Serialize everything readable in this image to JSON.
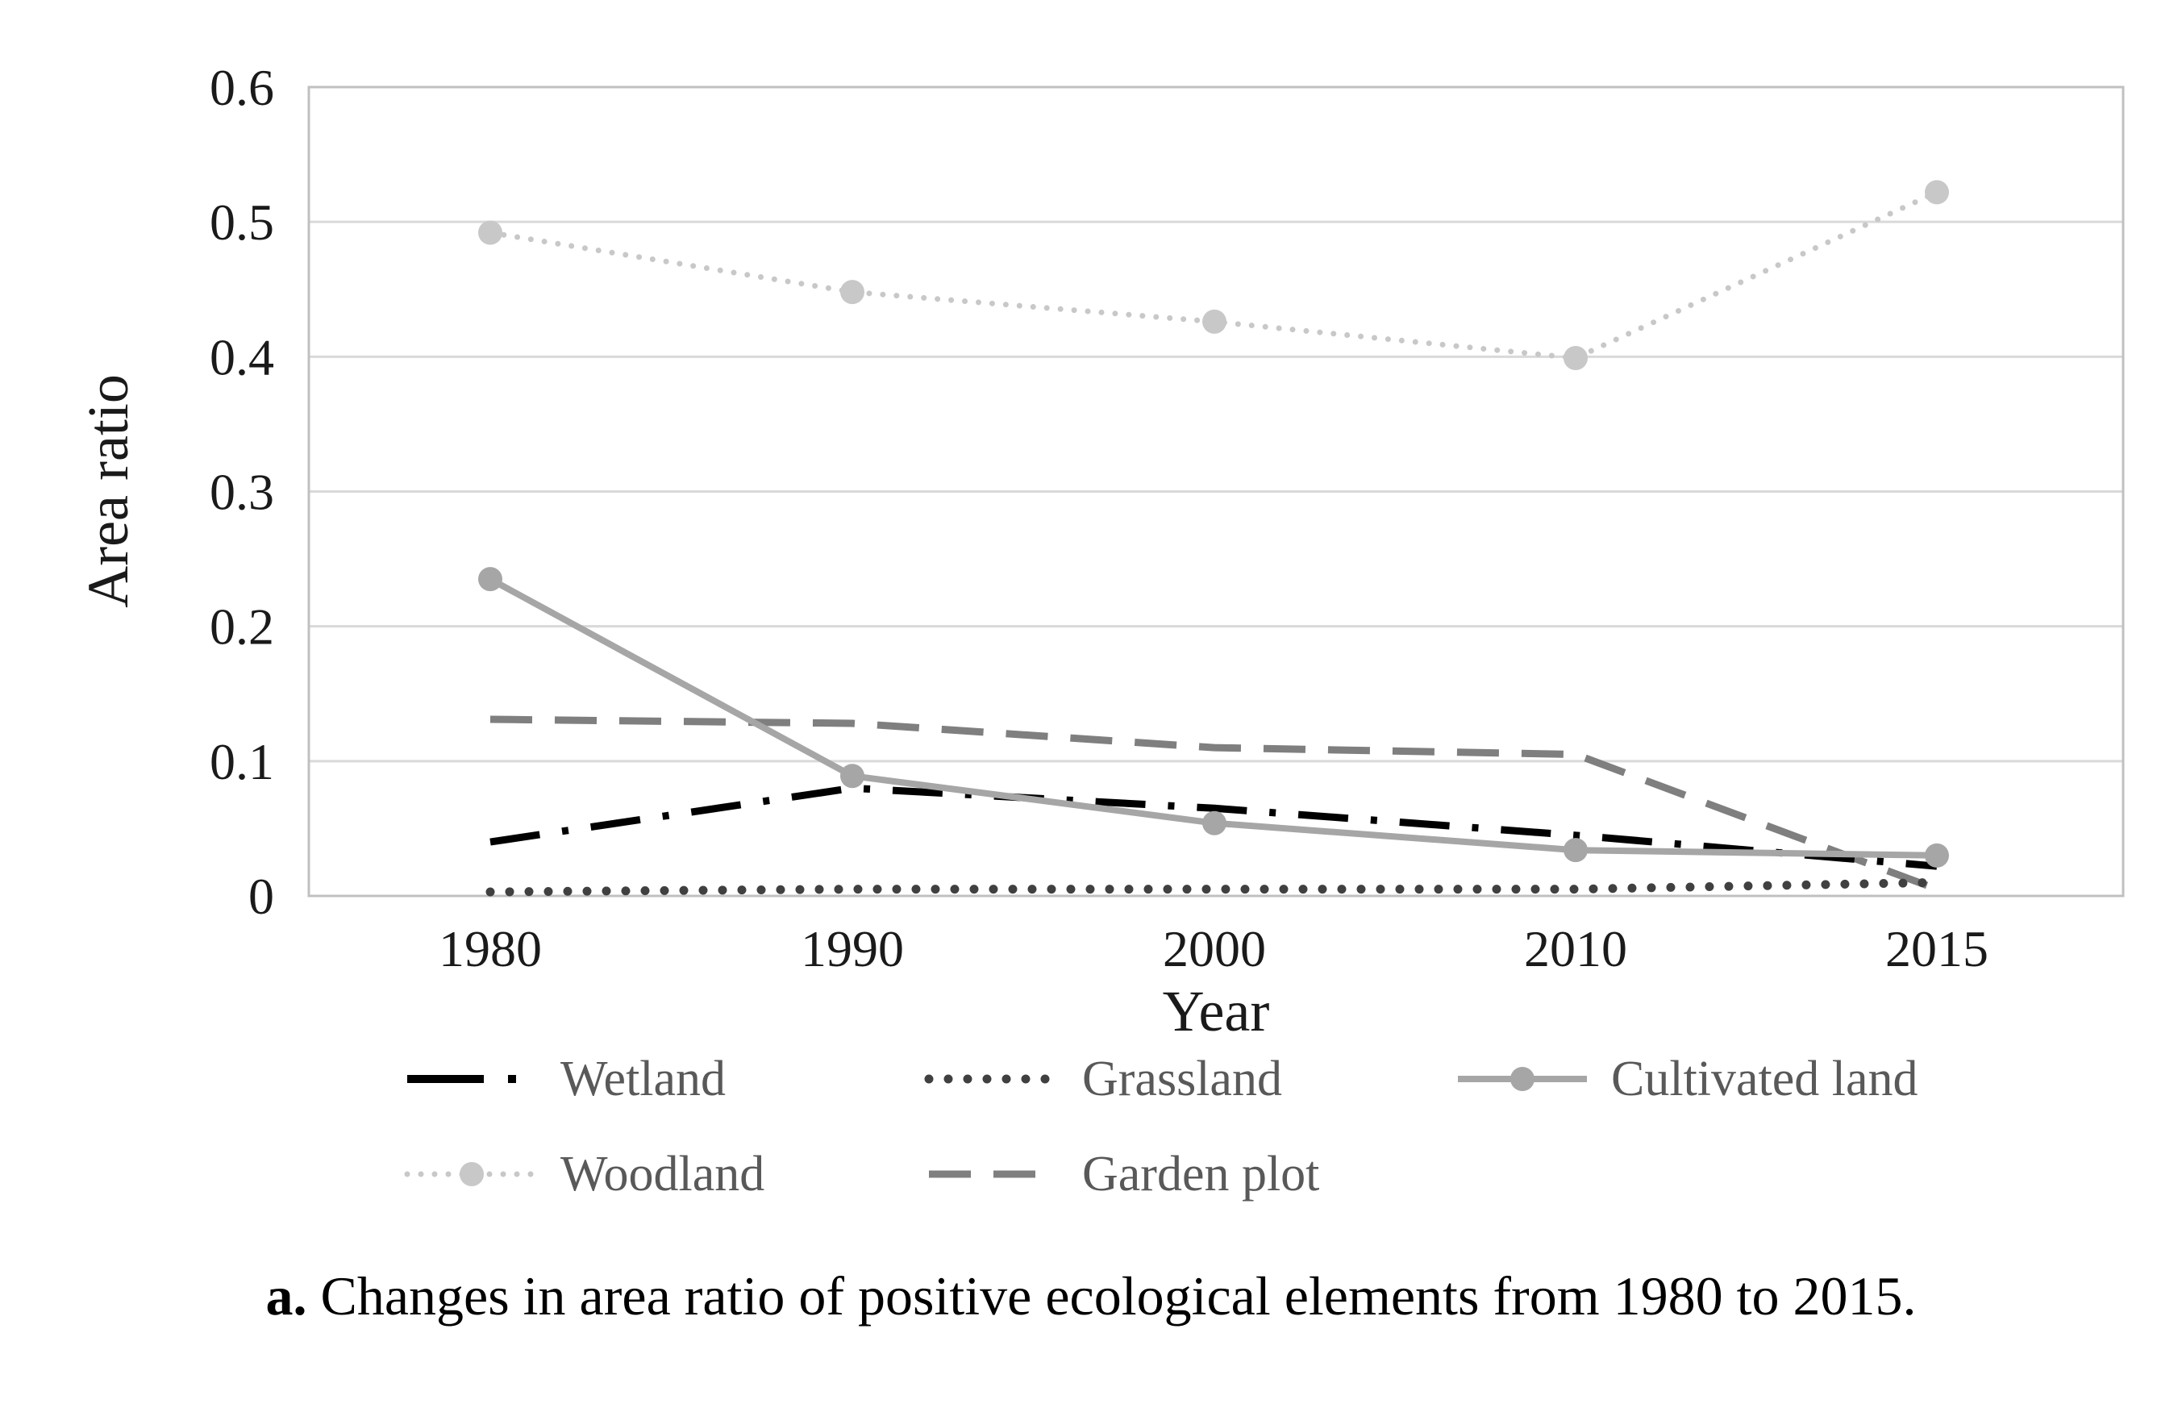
{
  "chart_data": {
    "type": "line",
    "title": "",
    "xlabel": "Year",
    "ylabel": "Area ratio",
    "categories": [
      "1980",
      "1990",
      "2000",
      "2010",
      "2015"
    ],
    "ylim": [
      0,
      0.6
    ],
    "yticks": [
      "0",
      "0.1",
      "0.2",
      "0.3",
      "0.4",
      "0.5",
      "0.6"
    ],
    "grid": true,
    "legend_position": "bottom",
    "series": [
      {
        "name": "Wetland",
        "values": [
          0.04,
          0.08,
          0.065,
          0.045,
          0.022
        ],
        "color": "#000000",
        "style": "dash-dot",
        "marker": "none"
      },
      {
        "name": "Grassland",
        "values": [
          0.003,
          0.005,
          0.005,
          0.005,
          0.01
        ],
        "color": "#404040",
        "style": "dotted",
        "marker": "none"
      },
      {
        "name": "Cultivated land",
        "values": [
          0.235,
          0.089,
          0.054,
          0.034,
          0.03
        ],
        "color": "#a6a6a6",
        "style": "solid",
        "marker": "circle"
      },
      {
        "name": "Woodland",
        "values": [
          0.492,
          0.448,
          0.426,
          0.399,
          0.522
        ],
        "color": "#c8c8c8",
        "style": "dotted",
        "marker": "circle"
      },
      {
        "name": "Garden plot",
        "values": [
          0.131,
          0.128,
          0.11,
          0.105,
          0.005
        ],
        "color": "#7f7f7f",
        "style": "dashed",
        "marker": "none"
      }
    ]
  },
  "caption": {
    "prefix": "a.",
    "text": " Changes in area ratio of positive ecological elements from 1980 to 2015."
  }
}
